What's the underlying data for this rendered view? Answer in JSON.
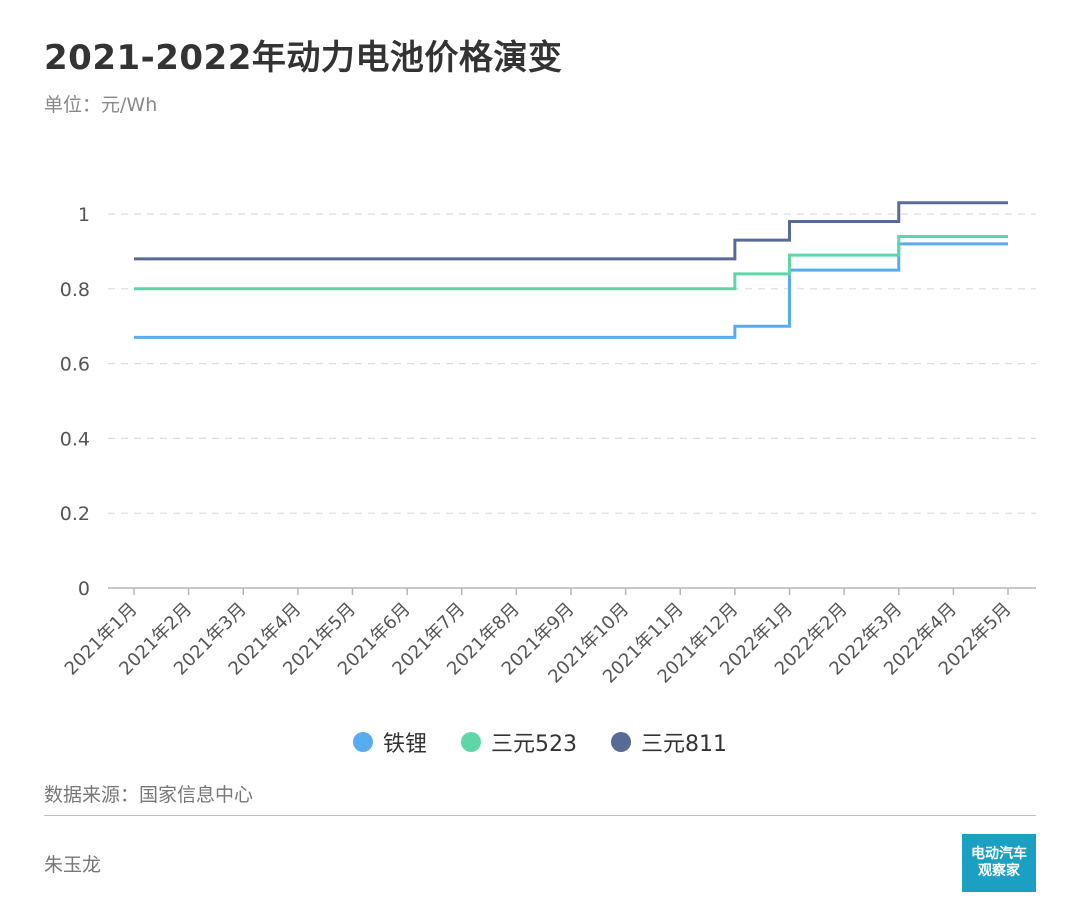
{
  "header": {
    "title": "2021-2022年动力电池价格演变",
    "unit": "单位：元/Wh"
  },
  "footer": {
    "source": "数据来源：国家信息中心",
    "author": "朱玉龙",
    "logo_line1": "电动汽车",
    "logo_line2": "观察家"
  },
  "colors": {
    "lfp": "#5aacf0",
    "ncm523": "#5fd6a7",
    "ncm811": "#586b97"
  },
  "chart_data": {
    "type": "line",
    "step": true,
    "title": "2021-2022年动力电池价格演变",
    "ylabel": "单位：元/Wh",
    "ylim": [
      0,
      1.1
    ],
    "yticks": [
      0,
      0.2,
      0.4,
      0.6,
      0.8,
      1
    ],
    "grid": true,
    "legend_position": "bottom",
    "categories": [
      "2021年1月",
      "2021年2月",
      "2021年3月",
      "2021年4月",
      "2021年5月",
      "2021年6月",
      "2021年7月",
      "2021年8月",
      "2021年9月",
      "2021年10月",
      "2021年11月",
      "2021年12月",
      "2022年1月",
      "2022年2月",
      "2022年3月",
      "2022年4月",
      "2022年5月"
    ],
    "series": [
      {
        "name": "铁锂",
        "color": "#5aacf0",
        "values": [
          0.67,
          0.67,
          0.67,
          0.67,
          0.67,
          0.67,
          0.67,
          0.67,
          0.67,
          0.67,
          0.67,
          0.7,
          0.85,
          0.85,
          0.92,
          0.92,
          0.92
        ]
      },
      {
        "name": "三元523",
        "color": "#5fd6a7",
        "values": [
          0.8,
          0.8,
          0.8,
          0.8,
          0.8,
          0.8,
          0.8,
          0.8,
          0.8,
          0.8,
          0.8,
          0.84,
          0.89,
          0.89,
          0.94,
          0.94,
          0.94
        ]
      },
      {
        "name": "三元811",
        "color": "#586b97",
        "values": [
          0.88,
          0.88,
          0.88,
          0.88,
          0.88,
          0.88,
          0.88,
          0.88,
          0.88,
          0.88,
          0.88,
          0.93,
          0.98,
          0.98,
          1.03,
          1.03,
          1.03
        ]
      }
    ]
  }
}
